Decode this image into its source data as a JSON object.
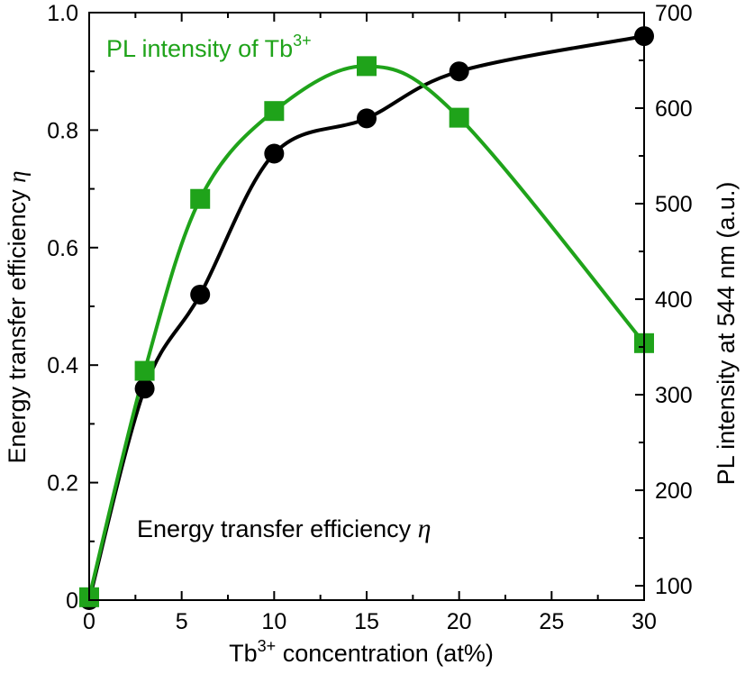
{
  "chart_data": {
    "type": "scatter",
    "xlabel": {
      "base": "Tb",
      "sup": "3+",
      "rest": " concentration (at%)"
    },
    "ylabel_left": {
      "main": "Energy transfer efficiency ",
      "sym": "η"
    },
    "ylabel_right": "PL intensity at 544 nm (a.u.)",
    "xlim": [
      0,
      30
    ],
    "ylim_left": [
      0,
      1.0
    ],
    "ylim_right": [
      85,
      700
    ],
    "x_ticks": [
      0,
      5,
      10,
      15,
      20,
      25,
      30
    ],
    "x_tick_labels": [
      "0",
      "5",
      "10",
      "15",
      "20",
      "25",
      "30"
    ],
    "y_left_ticks": [
      0,
      0.2,
      0.4,
      0.6,
      0.8,
      1.0
    ],
    "y_left_tick_labels": [
      "0",
      "0.2",
      "0.4",
      "0.6",
      "0.8",
      "1.0"
    ],
    "y_right_ticks": [
      100,
      200,
      300,
      400,
      500,
      600,
      700
    ],
    "y_right_tick_labels": [
      "100",
      "200",
      "300",
      "400",
      "500",
      "600",
      "700"
    ],
    "grid": false,
    "legend": "none",
    "series": [
      {
        "name": "Energy transfer efficiency η",
        "axis": "left",
        "color": "#000000",
        "marker": "circle",
        "x": [
          0,
          3,
          6,
          10,
          15,
          20,
          30
        ],
        "y": [
          0.0,
          0.36,
          0.52,
          0.76,
          0.82,
          0.9,
          0.96
        ]
      },
      {
        "name": "PL intensity of Tb3+",
        "axis": "right",
        "color": "#1fa31a",
        "marker": "square",
        "x": [
          0,
          3,
          6,
          10,
          15,
          20,
          30
        ],
        "y": [
          88,
          325,
          505,
          597,
          644,
          590,
          354
        ]
      }
    ],
    "annotations": {
      "pl": {
        "main": "PL intensity of Tb",
        "sup": "3+"
      },
      "eff": {
        "main": "Energy transfer efficiency ",
        "sym": "η"
      }
    }
  }
}
